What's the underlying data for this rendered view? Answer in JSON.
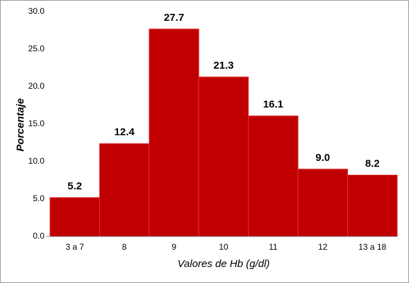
{
  "chart_data": {
    "type": "bar",
    "x_label": "Valores de Hb (g/dl)",
    "y_label": "Porcentaje",
    "categories": [
      "3 a 7",
      "8",
      "9",
      "10",
      "11",
      "12",
      "13 a 18"
    ],
    "values": [
      5.2,
      12.4,
      27.7,
      21.3,
      16.1,
      9.0,
      8.2
    ],
    "value_labels": [
      "5.2",
      "12.4",
      "27.7",
      "21.3",
      "16.1",
      "9.0",
      "8.2"
    ],
    "color": "#c00000",
    "ylim": [
      0,
      30
    ],
    "yticks": [
      {
        "value": 0,
        "label": "0.0"
      },
      {
        "value": 5,
        "label": "5.0"
      },
      {
        "value": 10,
        "label": "10.0"
      },
      {
        "value": 15,
        "label": "15.0"
      },
      {
        "value": 20,
        "label": "20.0"
      },
      {
        "value": 25,
        "label": "25.0"
      },
      {
        "value": 30,
        "label": "30.0"
      }
    ],
    "grid": false
  }
}
